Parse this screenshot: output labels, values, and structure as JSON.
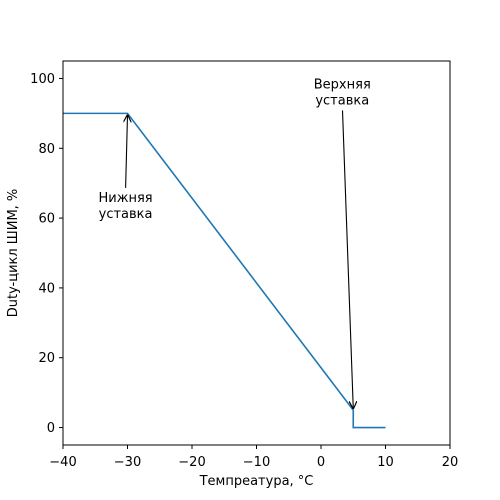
{
  "chart_data": {
    "type": "line",
    "title": "",
    "xlabel": "Темпреатура, °C",
    "ylabel": "Duty-цикл ШИМ, %",
    "xlim": [
      -40,
      20
    ],
    "ylim": [
      -5,
      105
    ],
    "x_ticks": [
      -40,
      -30,
      -20,
      -10,
      0,
      10,
      20
    ],
    "y_ticks": [
      0,
      20,
      40,
      60,
      80,
      100
    ],
    "x_tick_labels": [
      "−40",
      "−30",
      "−20",
      "−10",
      "0",
      "10",
      "20"
    ],
    "y_tick_labels": [
      "0",
      "20",
      "40",
      "60",
      "80",
      "100"
    ],
    "grid": false,
    "legend": "none",
    "series": [
      {
        "color": "#1f77b4",
        "x": [
          -40,
          -30,
          5,
          5,
          10
        ],
        "y": [
          90,
          90,
          5,
          0,
          0
        ]
      }
    ],
    "annotations": [
      {
        "lines": [
          "Нижняя",
          "уставка"
        ],
        "text_x": -30.3,
        "text_y": 63.5,
        "target_x": -30,
        "target_y": 90
      },
      {
        "lines": [
          "Верхняя",
          "уставка"
        ],
        "text_x": 3.3,
        "text_y": 96,
        "target_x": 5,
        "target_y": 5
      }
    ]
  }
}
